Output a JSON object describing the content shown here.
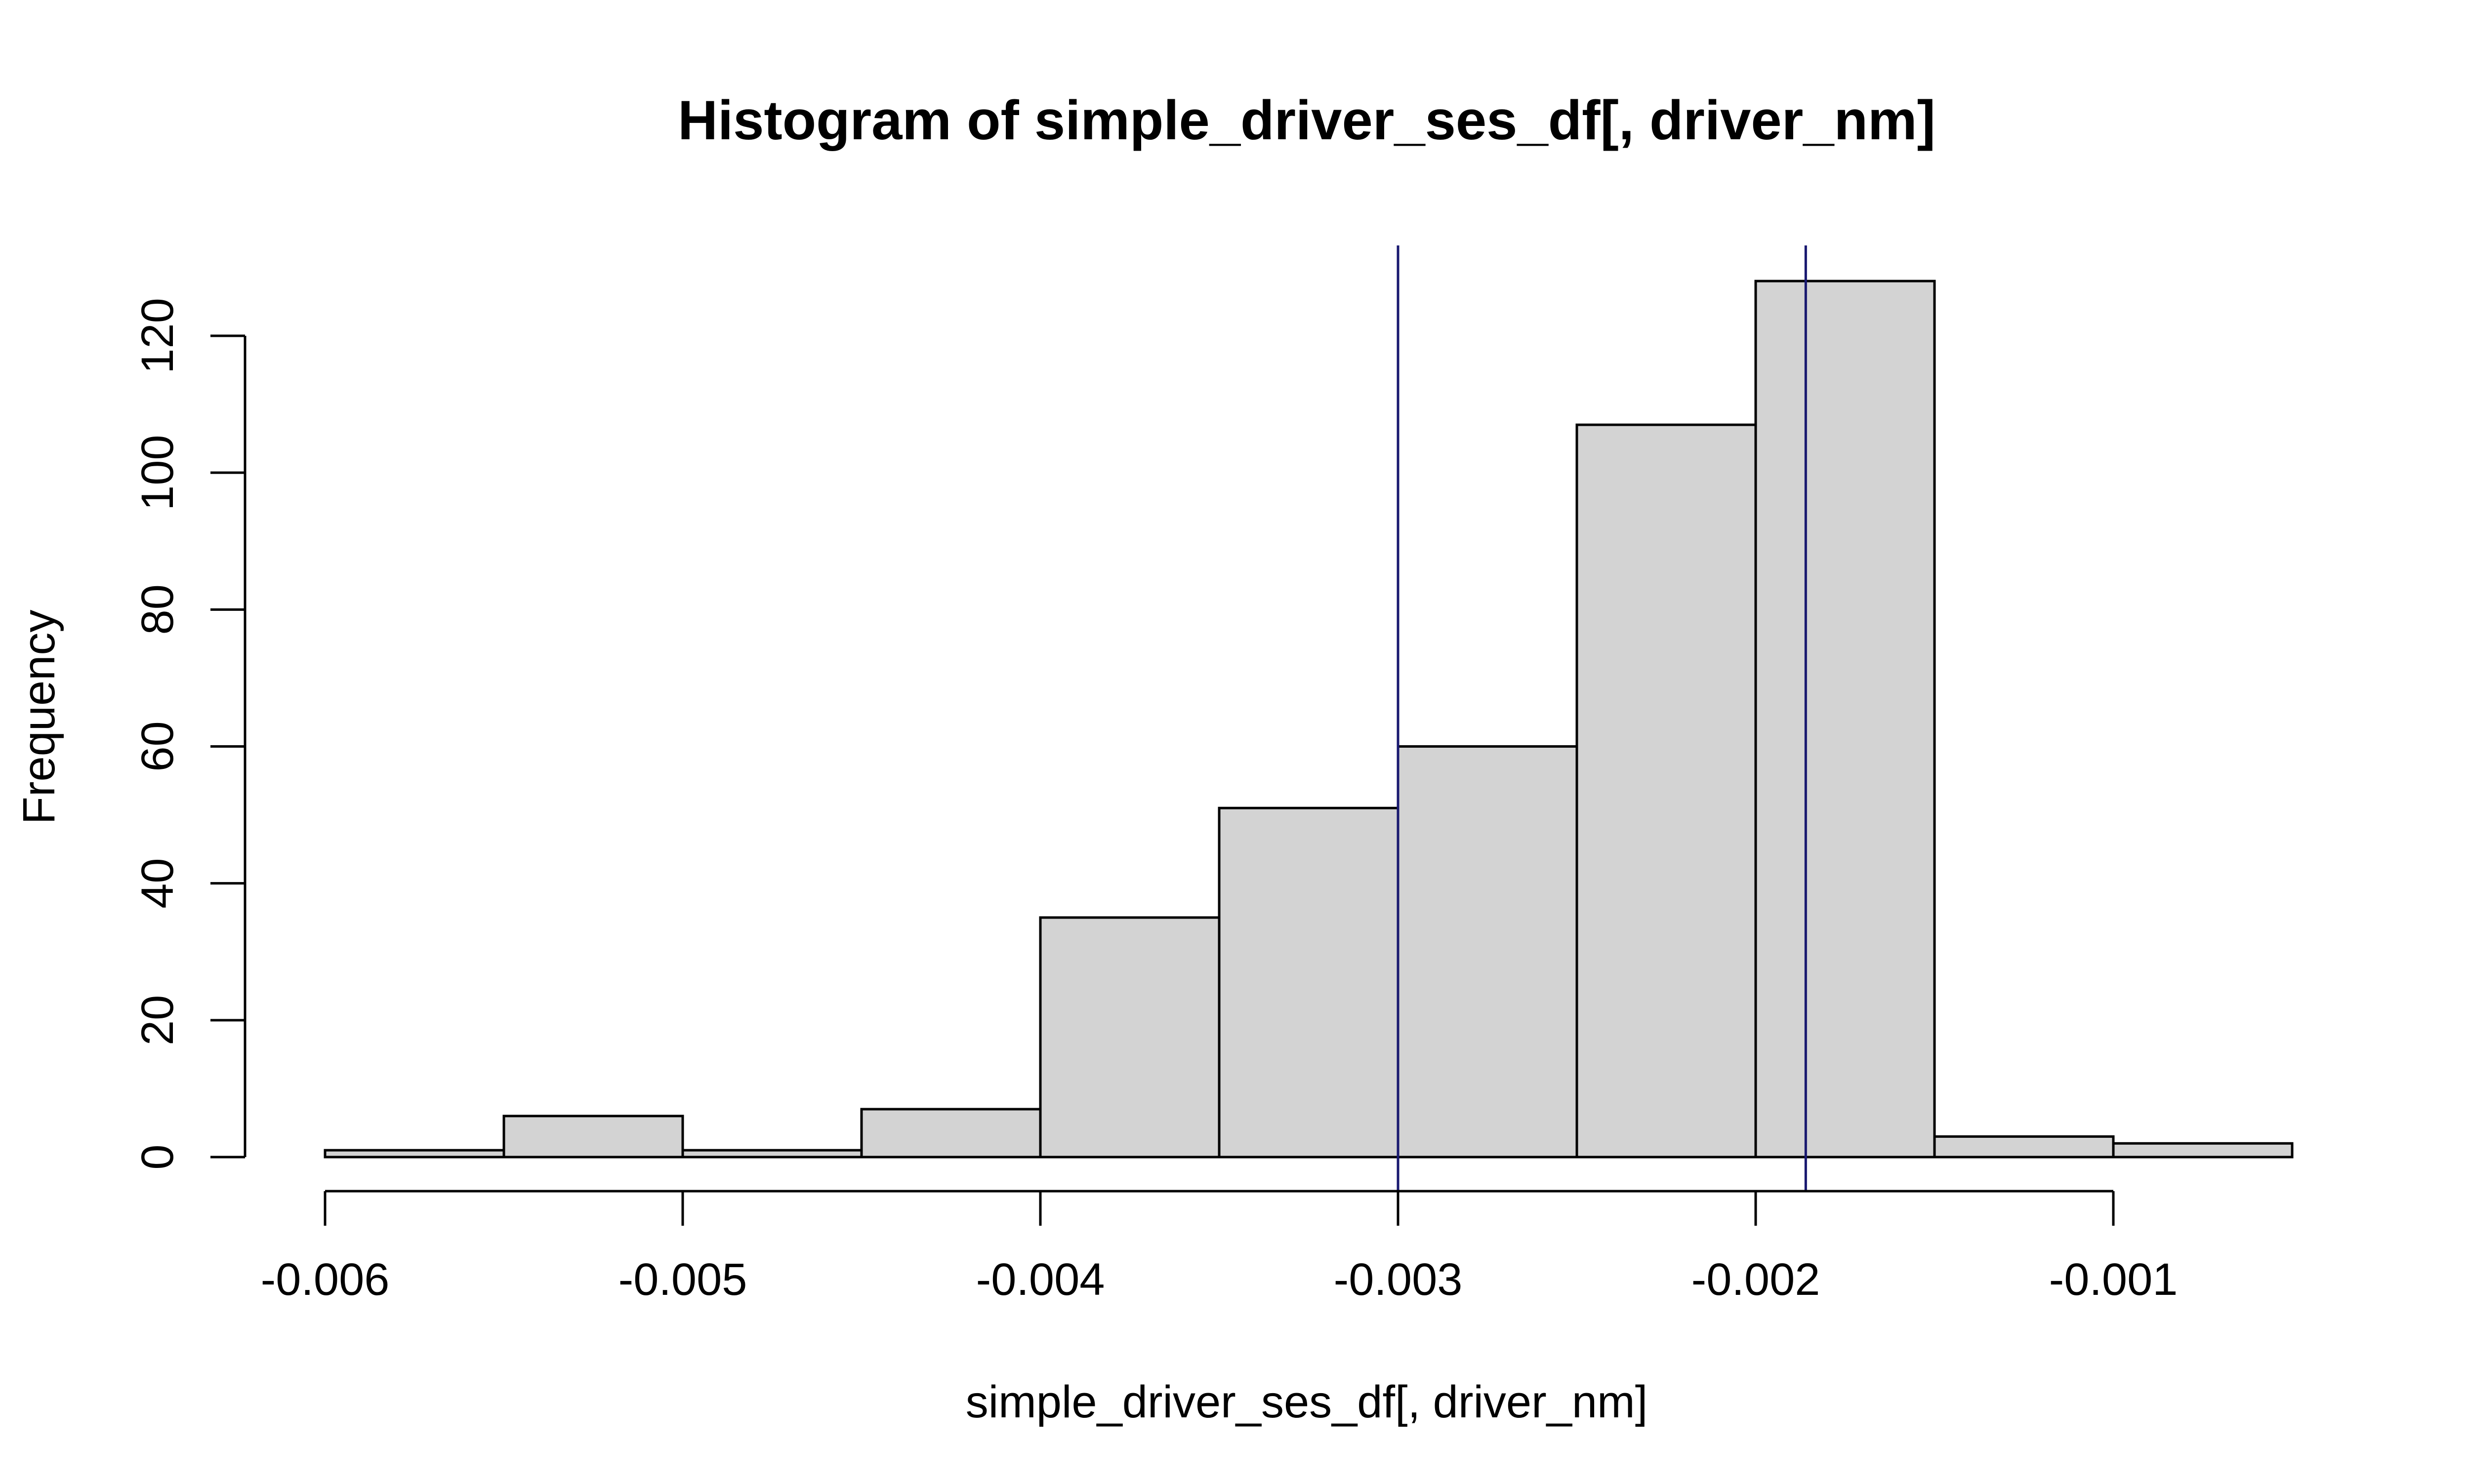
{
  "chart_data": {
    "type": "bar",
    "title": "Histogram of simple_driver_ses_df[, driver_nm]",
    "xlabel": "simple_driver_ses_df[, driver_nm]",
    "ylabel": "Frequency",
    "bins": [
      {
        "start": -0.006,
        "end": -0.0055,
        "count": 1
      },
      {
        "start": -0.0055,
        "end": -0.005,
        "count": 6
      },
      {
        "start": -0.005,
        "end": -0.0045,
        "count": 1
      },
      {
        "start": -0.0045,
        "end": -0.004,
        "count": 7
      },
      {
        "start": -0.004,
        "end": -0.0035,
        "count": 35
      },
      {
        "start": -0.0035,
        "end": -0.003,
        "count": 51
      },
      {
        "start": -0.003,
        "end": -0.0025,
        "count": 60
      },
      {
        "start": -0.0025,
        "end": -0.002,
        "count": 107
      },
      {
        "start": -0.002,
        "end": -0.0015,
        "count": 128
      },
      {
        "start": -0.0015,
        "end": -0.001,
        "count": 3
      },
      {
        "start": -0.001,
        "end": -0.0005,
        "count": 2
      }
    ],
    "xlim": [
      -0.006,
      -0.0005
    ],
    "ylim": [
      0,
      120
    ],
    "x_ticks": [
      -0.006,
      -0.005,
      -0.004,
      -0.003,
      -0.002,
      -0.001
    ],
    "x_tick_labels": [
      "-0.006",
      "-0.005",
      "-0.004",
      "-0.003",
      "-0.002",
      "-0.001"
    ],
    "y_ticks": [
      0,
      20,
      40,
      60,
      80,
      100,
      120
    ],
    "y_tick_labels": [
      "0",
      "20",
      "40",
      "60",
      "80",
      "100",
      "120"
    ],
    "vlines": [
      {
        "x": -0.003,
        "color": "#191970"
      },
      {
        "x": -0.00186,
        "color": "#191970"
      }
    ],
    "bar_fill": "#d3d3d3",
    "bar_stroke": "#000000",
    "grid": false,
    "legend": "none"
  }
}
